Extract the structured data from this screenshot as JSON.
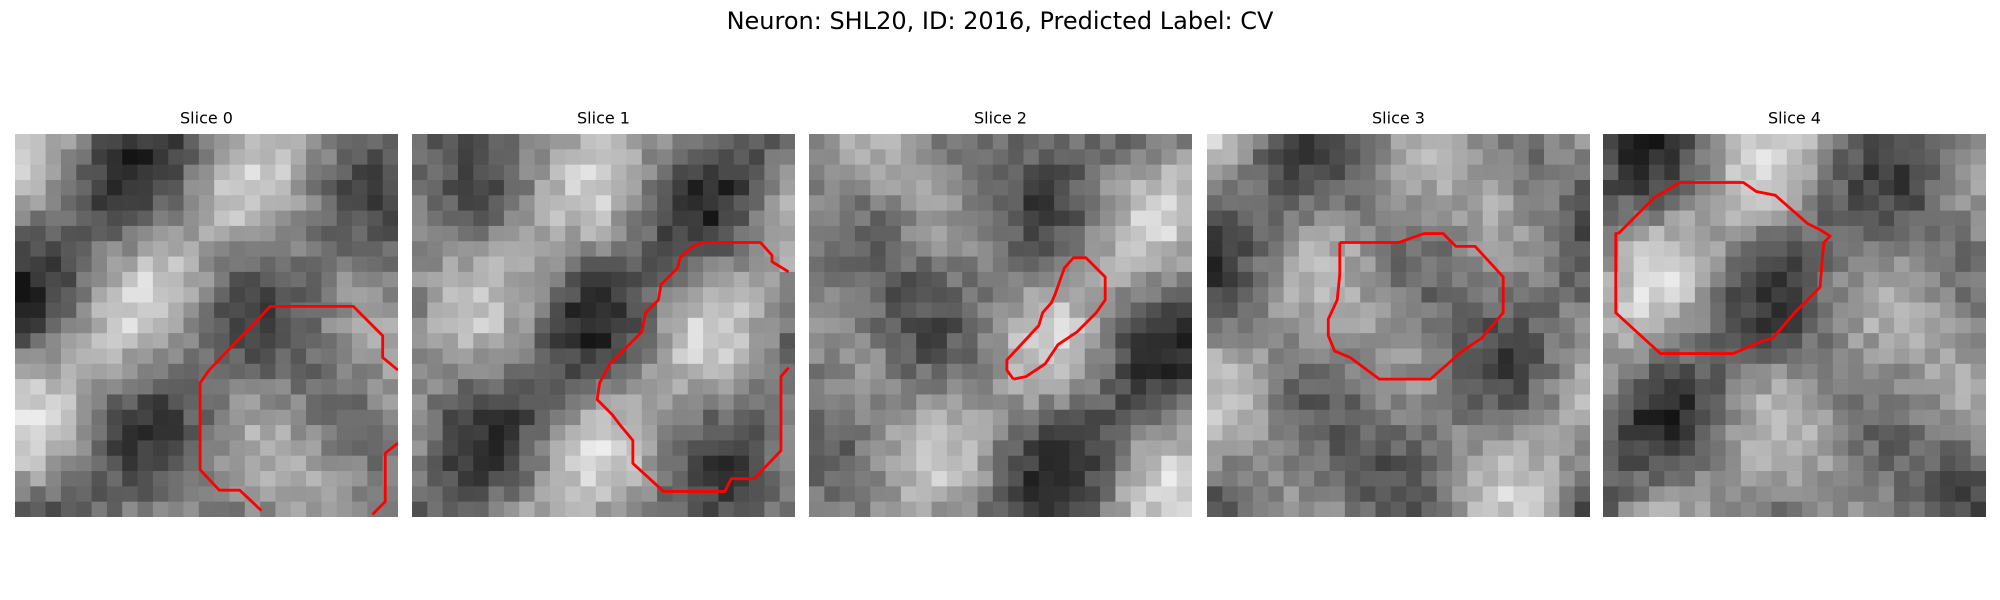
{
  "title": "Neuron: SHL20, ID: 2016, Predicted Label: CV",
  "panels": [
    {
      "title": "Slice 0"
    },
    {
      "title": "Slice 1"
    },
    {
      "title": "Slice 2"
    },
    {
      "title": "Slice 3"
    },
    {
      "title": "Slice 4"
    }
  ]
}
